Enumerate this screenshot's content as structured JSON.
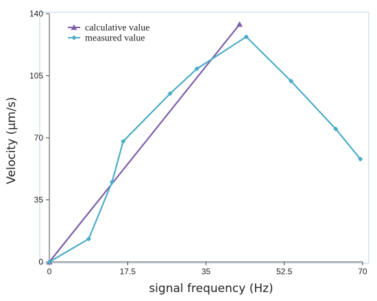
{
  "chart_data": {
    "type": "line",
    "xlabel": "signal frequency (Hz)",
    "ylabel": "Velocity (μm/s)",
    "xlim": [
      0,
      70
    ],
    "ylim": [
      0,
      140
    ],
    "xticks": [
      0,
      17.5,
      35,
      52.5,
      70
    ],
    "yticks": [
      0,
      35,
      70,
      105,
      140
    ],
    "xtick_labels": [
      "0",
      "17.5",
      "35",
      "52.5",
      "70"
    ],
    "ytick_labels": [
      "0",
      "35",
      "70",
      "105",
      "140"
    ],
    "grid": false,
    "legend_position": "top-left",
    "series": [
      {
        "name": "calculative value",
        "color": "#7b5ea7",
        "marker": "triangle",
        "x": [
          0,
          42.5
        ],
        "y": [
          0,
          134
        ]
      },
      {
        "name": "measured value",
        "color": "#4bacc6",
        "marker": "diamond",
        "x": [
          0,
          8.8,
          14,
          16.5,
          27,
          33,
          44,
          54,
          64,
          69.5
        ],
        "y": [
          0,
          13,
          45,
          68,
          95,
          109,
          127,
          102,
          75,
          58
        ]
      }
    ]
  }
}
